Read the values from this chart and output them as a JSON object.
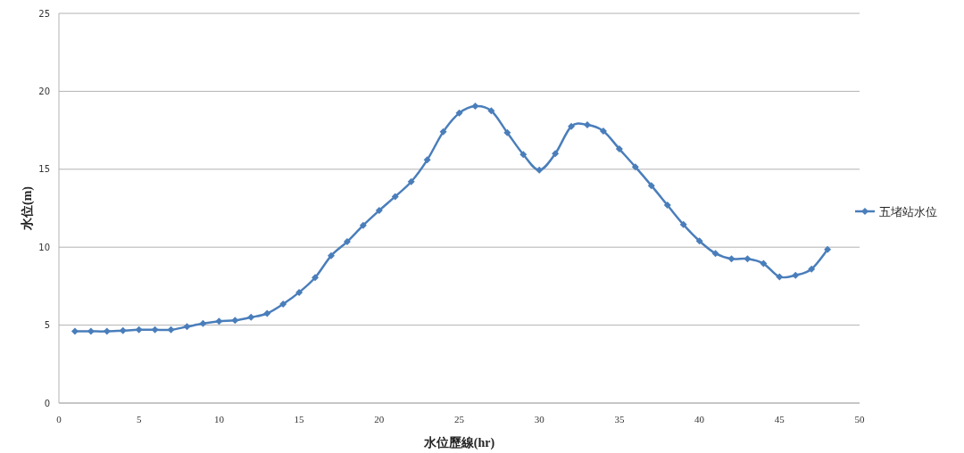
{
  "chart_data": {
    "type": "line",
    "xlabel": "水位歷線(hr)",
    "ylabel": "水位(m)",
    "x": [
      1,
      2,
      3,
      4,
      5,
      6,
      7,
      8,
      9,
      10,
      11,
      12,
      13,
      14,
      15,
      16,
      17,
      18,
      19,
      20,
      21,
      22,
      23,
      24,
      25,
      26,
      27,
      28,
      29,
      30,
      31,
      32,
      33,
      34,
      35,
      36,
      37,
      38,
      39,
      40,
      41,
      42,
      43,
      44,
      45,
      46,
      47,
      48
    ],
    "series": [
      {
        "name": "五堵站水位",
        "color": "#4a7ebb",
        "values": [
          4.6,
          4.6,
          4.6,
          4.65,
          4.7,
          4.7,
          4.7,
          4.9,
          5.1,
          5.25,
          5.3,
          5.5,
          5.75,
          6.35,
          7.1,
          8.05,
          9.45,
          10.35,
          11.4,
          12.35,
          13.25,
          14.2,
          15.6,
          17.4,
          18.6,
          19.05,
          18.75,
          17.35,
          15.95,
          14.95,
          16.0,
          17.75,
          17.85,
          17.45,
          16.3,
          15.15,
          13.95,
          12.7,
          11.45,
          10.4,
          9.6,
          9.25,
          9.25,
          8.95,
          8.1,
          8.2,
          8.6,
          9.85
        ]
      }
    ],
    "xlim": [
      0,
      50
    ],
    "xticks": [
      0,
      5,
      10,
      15,
      20,
      25,
      30,
      35,
      40,
      45,
      50
    ],
    "ylim": [
      0,
      25
    ],
    "yticks": [
      0,
      5,
      10,
      15,
      20,
      25
    ],
    "grid": "y",
    "legend": "right",
    "marker": "diamond",
    "line_style": "solid"
  }
}
